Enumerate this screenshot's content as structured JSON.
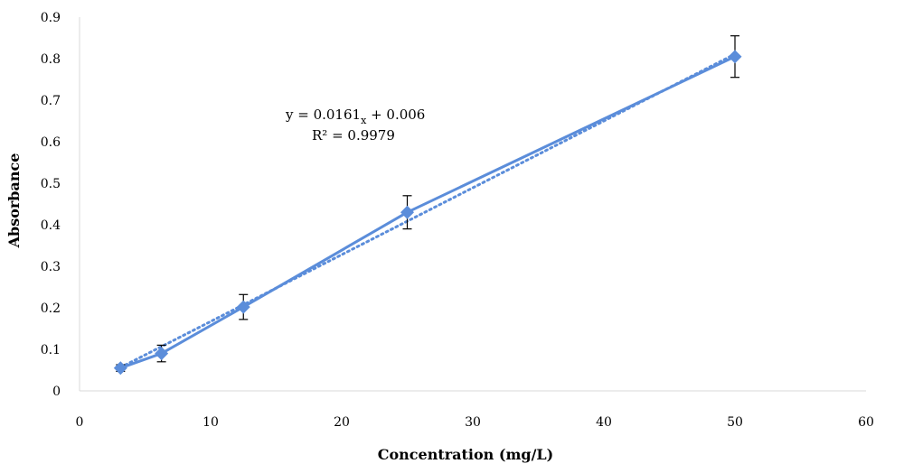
{
  "chart_data": {
    "type": "line",
    "xlabel": "Concentration (mg/L)",
    "ylabel": "Absorbance",
    "xlim": [
      0,
      60
    ],
    "ylim": [
      0,
      0.9
    ],
    "x_ticks": [
      "0",
      "10",
      "20",
      "30",
      "40",
      "50",
      "60"
    ],
    "y_ticks": [
      "0",
      "0.1",
      "0.2",
      "0.3",
      "0.4",
      "0.5",
      "0.6",
      "0.7",
      "0.8",
      "0.9"
    ],
    "grid": false,
    "series": [
      {
        "marker": "diamond",
        "color": "#5B8DDA",
        "x": [
          3.125,
          6.25,
          12.5,
          25,
          50
        ],
        "y": [
          0.055,
          0.09,
          0.202,
          0.43,
          0.805
        ],
        "error": [
          0.008,
          0.02,
          0.03,
          0.04,
          0.05
        ]
      }
    ],
    "trendline": {
      "style": "dotted",
      "color": "#5B8DDA",
      "slope": 0.0161,
      "intercept": 0.006,
      "x_range": [
        3.125,
        50
      ]
    },
    "annotations": {
      "equation_main": "y = 0.0161",
      "equation_sub": "x",
      "equation_tail": " + 0.006",
      "r_squared": "R² = 0.9979"
    }
  }
}
